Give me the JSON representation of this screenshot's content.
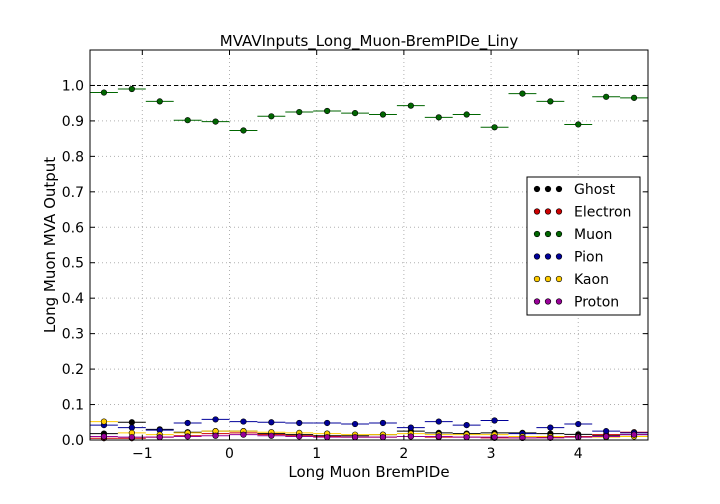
{
  "chart_data": {
    "type": "scatter",
    "title": "MVAVInputs_Long_Muon-BremPIDe_Liny",
    "xlabel": "Long Muon BremPIDe",
    "ylabel": "Long Muon MVA Output",
    "xlim": [
      -1.6,
      4.8
    ],
    "ylim": [
      0.0,
      1.1
    ],
    "xticks": [
      -1,
      0,
      1,
      2,
      3,
      4
    ],
    "xtick_labels": [
      "−1",
      "0",
      "1",
      "2",
      "3",
      "4"
    ],
    "yticks": [
      0.0,
      0.1,
      0.2,
      0.3,
      0.4,
      0.5,
      0.6,
      0.7,
      0.8,
      0.9,
      1.0
    ],
    "ytick_labels": [
      "0.0",
      "0.1",
      "0.2",
      "0.3",
      "0.4",
      "0.5",
      "0.6",
      "0.7",
      "0.8",
      "0.9",
      "1.0"
    ],
    "grid": true,
    "reference_line": 1.0,
    "legend_position": "right",
    "bin_width": 0.32,
    "x": [
      -1.44,
      -1.12,
      -0.8,
      -0.48,
      -0.16,
      0.16,
      0.48,
      0.8,
      1.12,
      1.44,
      1.76,
      2.08,
      2.4,
      2.72,
      3.04,
      3.36,
      3.68,
      4.0,
      4.32,
      4.64
    ],
    "series": [
      {
        "name": "Ghost",
        "color": "#000000",
        "values": [
          0.018,
          0.05,
          0.03,
          0.022,
          0.025,
          0.025,
          0.018,
          0.015,
          0.012,
          0.012,
          0.015,
          0.025,
          0.02,
          0.018,
          0.02,
          0.02,
          0.018,
          0.016,
          0.012,
          0.015
        ]
      },
      {
        "name": "Electron",
        "color": "#cc0000",
        "values": [
          0.005,
          0.005,
          0.008,
          0.012,
          0.018,
          0.02,
          0.015,
          0.012,
          0.01,
          0.008,
          0.008,
          0.01,
          0.008,
          0.008,
          0.006,
          0.006,
          0.008,
          0.01,
          0.015,
          0.022
        ]
      },
      {
        "name": "Muon",
        "color": "#006600",
        "values": [
          0.98,
          0.99,
          0.955,
          0.902,
          0.898,
          0.873,
          0.913,
          0.925,
          0.928,
          0.922,
          0.918,
          0.943,
          0.91,
          0.918,
          0.882,
          0.977,
          0.955,
          0.89,
          0.968,
          0.965
        ]
      },
      {
        "name": "Pion",
        "color": "#000099",
        "values": [
          0.042,
          0.035,
          0.028,
          0.048,
          0.058,
          0.052,
          0.05,
          0.048,
          0.048,
          0.045,
          0.048,
          0.035,
          0.052,
          0.042,
          0.055,
          0.018,
          0.035,
          0.045,
          0.025,
          0.02
        ]
      },
      {
        "name": "Kaon",
        "color": "#ffcc00",
        "values": [
          0.052,
          0.02,
          0.015,
          0.02,
          0.025,
          0.025,
          0.022,
          0.02,
          0.018,
          0.015,
          0.015,
          0.018,
          0.015,
          0.015,
          0.015,
          0.01,
          0.01,
          0.008,
          0.008,
          0.01
        ]
      },
      {
        "name": "Proton",
        "color": "#990099",
        "values": [
          0.01,
          0.008,
          0.008,
          0.01,
          0.012,
          0.015,
          0.012,
          0.01,
          0.008,
          0.008,
          0.008,
          0.01,
          0.01,
          0.008,
          0.008,
          0.006,
          0.006,
          0.008,
          0.01,
          0.015
        ]
      }
    ]
  }
}
